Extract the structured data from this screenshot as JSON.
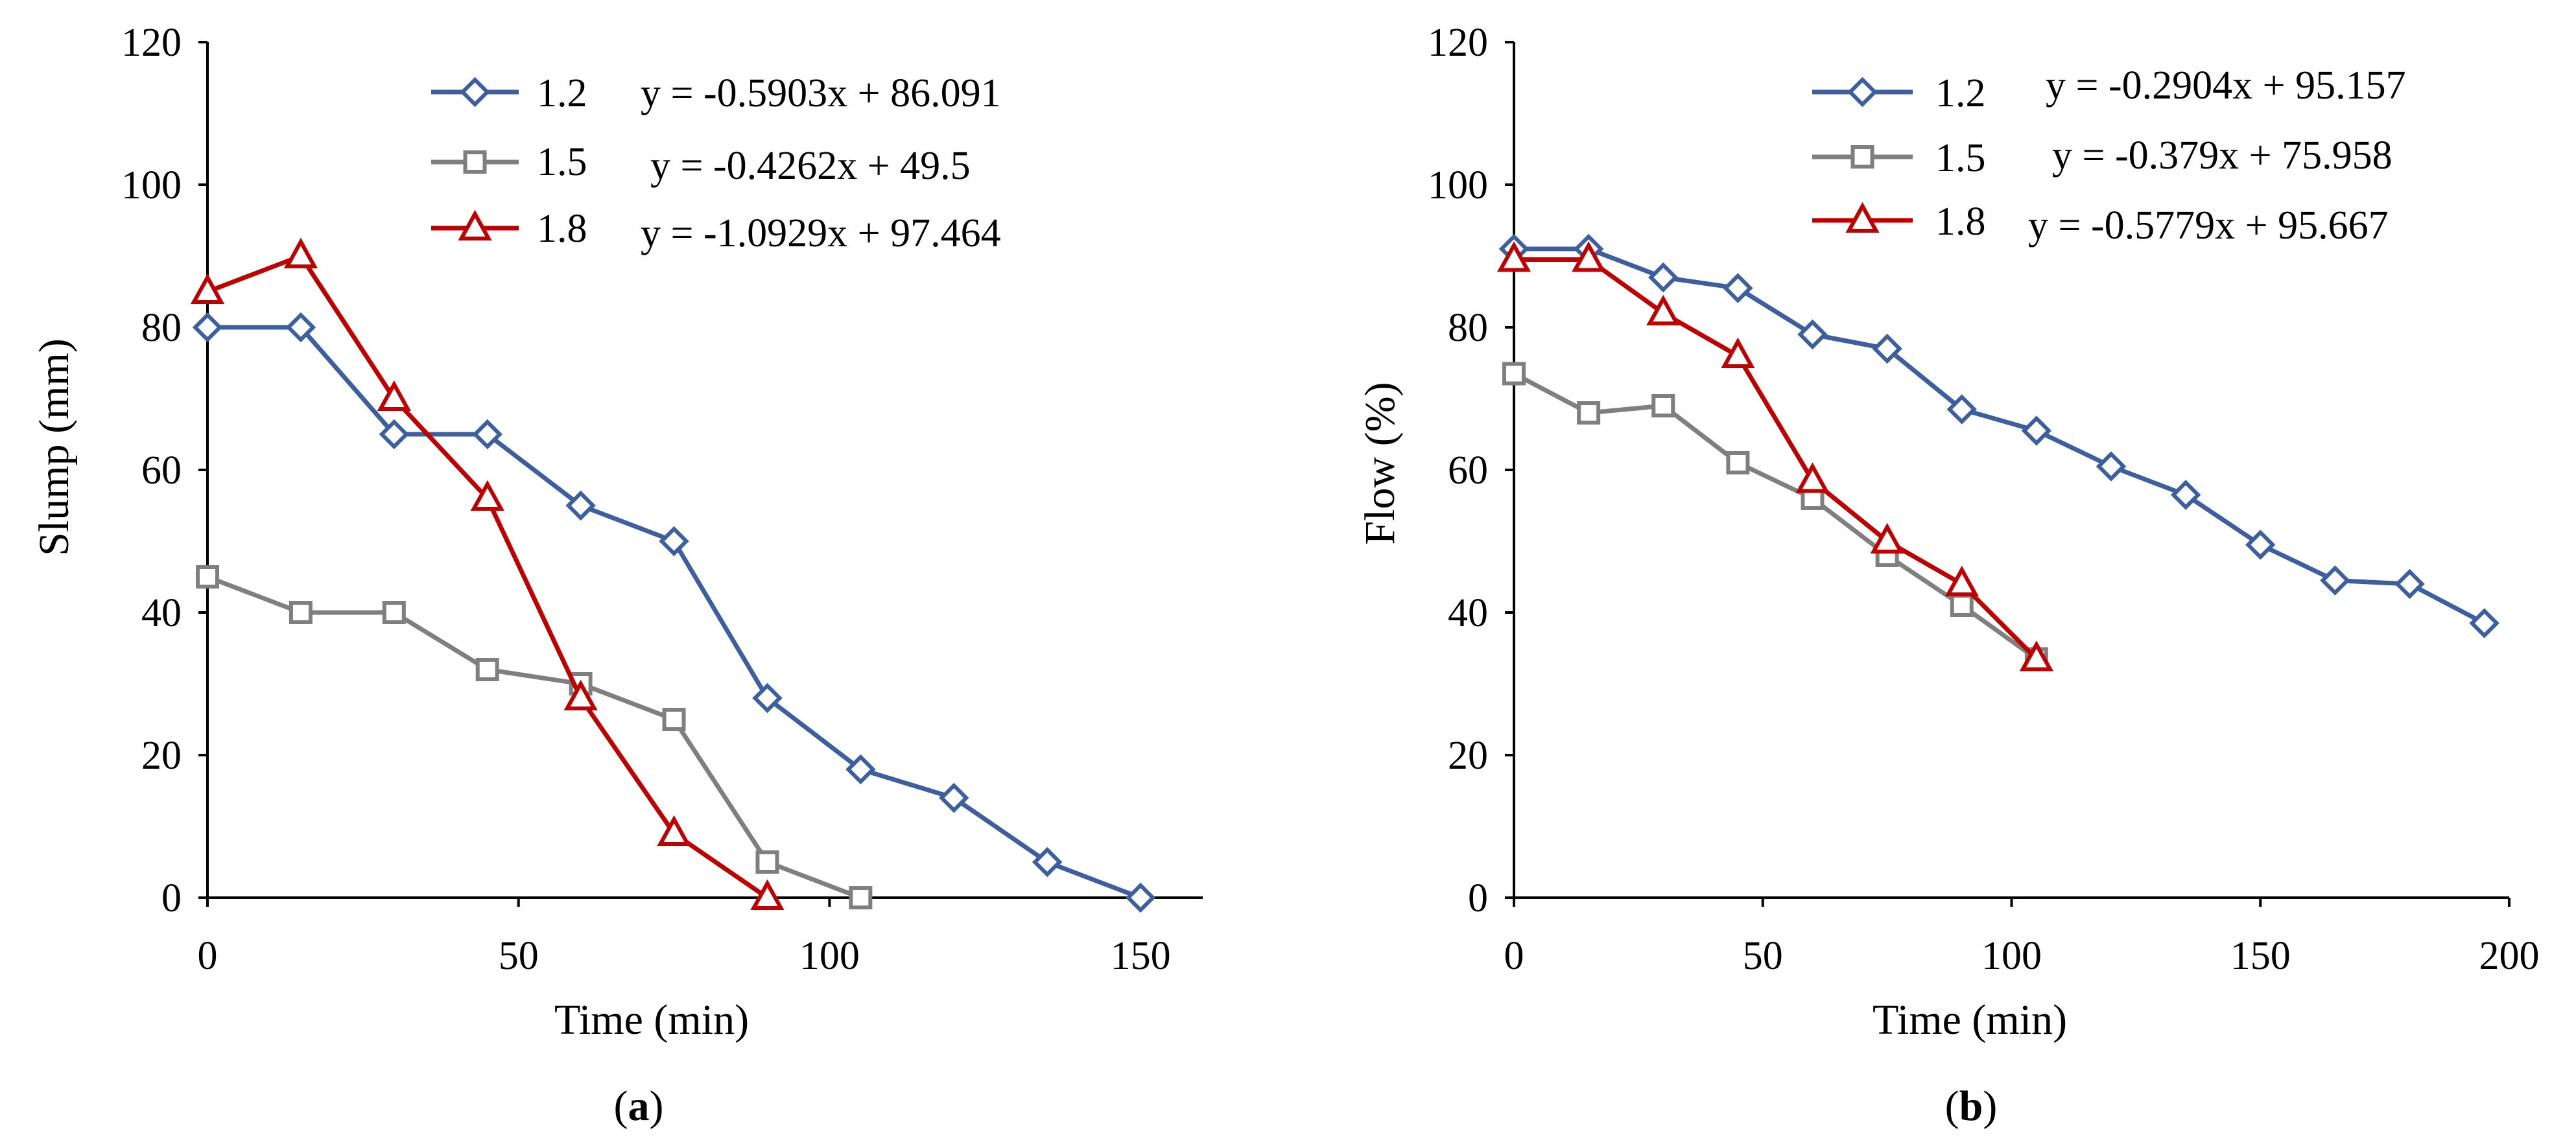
{
  "figure": {
    "captions": [
      {
        "open": "(",
        "letter": "a",
        "close": ")"
      },
      {
        "open": "(",
        "letter": "b",
        "close": ")"
      }
    ]
  },
  "chart_data": [
    {
      "type": "line",
      "title": "",
      "xlabel": "Time (min)",
      "ylabel": "Slump (mm)",
      "xlim": [
        0,
        160
      ],
      "ylim": [
        0,
        120
      ],
      "xticks": [
        0,
        50,
        100,
        150
      ],
      "yticks": [
        0,
        20,
        40,
        60,
        80,
        100,
        120
      ],
      "grid": false,
      "legend_position": "top-right",
      "series": [
        {
          "name": "1.2",
          "equation": "y = -0.5903x + 86.091",
          "color": "#3d5f9f",
          "marker": "diamond",
          "x": [
            0,
            15,
            30,
            45,
            60,
            75,
            90,
            105,
            120,
            135,
            150
          ],
          "y": [
            80,
            80,
            65,
            65,
            55,
            50,
            28,
            18,
            14,
            5,
            0
          ]
        },
        {
          "name": "1.5",
          "equation": "y = -0.4262x + 49.5",
          "color": "#7f7f7f",
          "marker": "square",
          "x": [
            0,
            15,
            30,
            45,
            60,
            75,
            90,
            105
          ],
          "y": [
            45,
            40,
            40,
            32,
            30,
            25,
            5,
            0
          ]
        },
        {
          "name": "1.8",
          "equation": "y = -1.0929x + 97.464",
          "color": "#c00000",
          "marker": "triangle",
          "x": [
            0,
            15,
            30,
            45,
            60,
            75,
            90
          ],
          "y": [
            85,
            90,
            70,
            56,
            28,
            9,
            0
          ]
        }
      ]
    },
    {
      "type": "line",
      "title": "",
      "xlabel": "Time (min)",
      "ylabel": "Flow (%)",
      "xlim": [
        0,
        200
      ],
      "ylim": [
        0,
        120
      ],
      "xticks": [
        0,
        50,
        100,
        150,
        200
      ],
      "yticks": [
        0,
        20,
        40,
        60,
        80,
        100,
        120
      ],
      "grid": false,
      "legend_position": "top-right",
      "series": [
        {
          "name": "1.2",
          "equation": "y = -0.2904x + 95.157",
          "color": "#3d5f9f",
          "marker": "diamond",
          "x": [
            0,
            15,
            30,
            45,
            60,
            75,
            90,
            105,
            120,
            135,
            150,
            165,
            180,
            195
          ],
          "y": [
            91,
            91,
            87,
            85.5,
            79,
            77,
            68.5,
            65.5,
            60.5,
            56.5,
            49.5,
            44.5,
            44,
            38.5
          ]
        },
        {
          "name": "1.5",
          "equation": "y = -0.379x + 75.958",
          "color": "#7f7f7f",
          "marker": "square",
          "x": [
            0,
            15,
            30,
            45,
            60,
            75,
            90,
            105
          ],
          "y": [
            73.5,
            68,
            69,
            61,
            56,
            48,
            41,
            33.5
          ]
        },
        {
          "name": "1.8",
          "equation": "y = -0.5779x + 95.667",
          "color": "#c00000",
          "marker": "triangle",
          "x": [
            0,
            15,
            30,
            45,
            60,
            75,
            90,
            105
          ],
          "y": [
            89.5,
            89.5,
            82,
            76,
            58.5,
            50,
            44,
            33.5
          ]
        }
      ]
    }
  ]
}
